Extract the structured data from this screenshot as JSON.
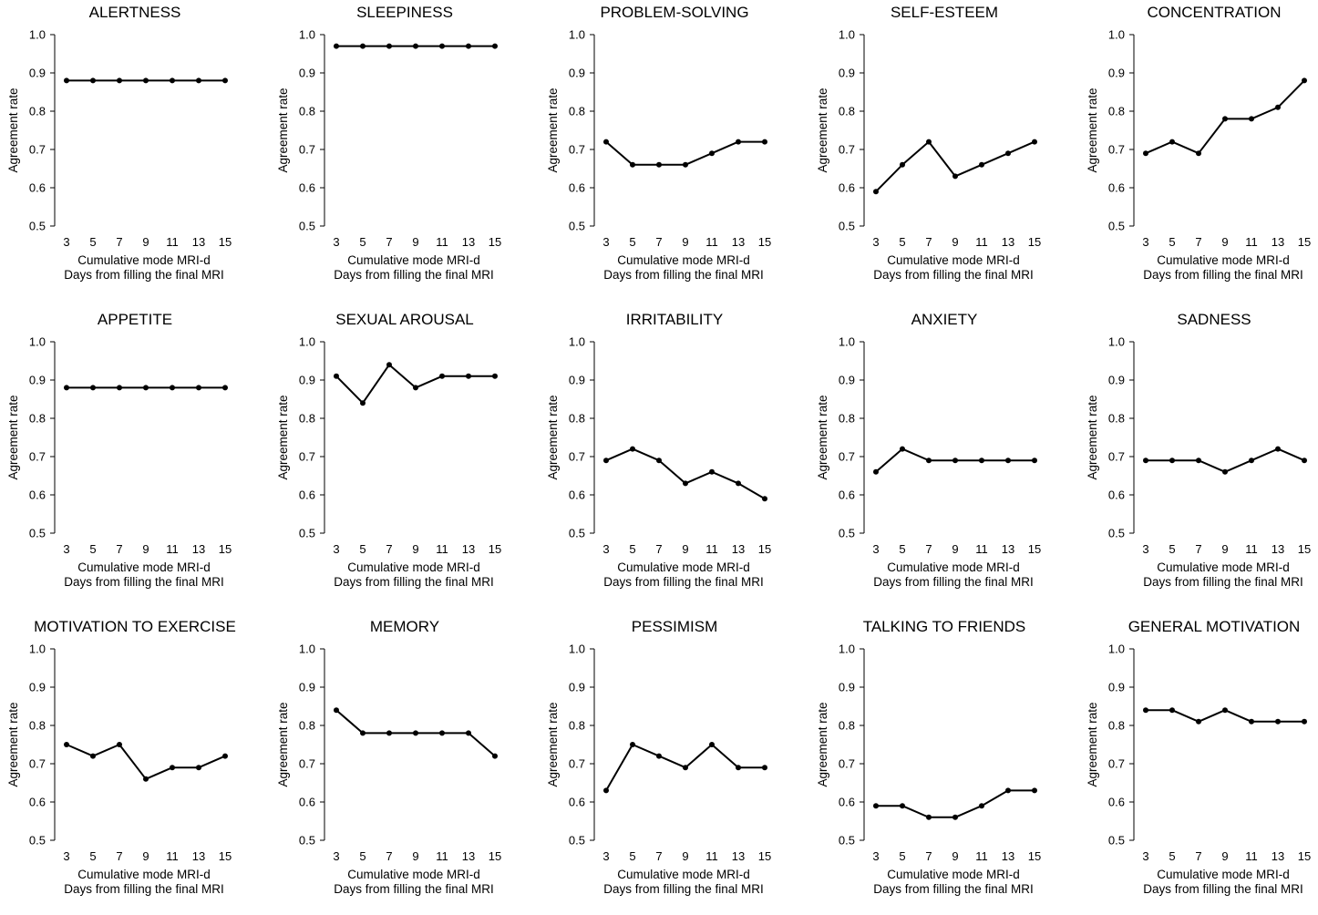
{
  "figure": {
    "background": "#ffffff",
    "line_color": "#000000"
  },
  "chart_data": [
    {
      "type": "line",
      "title": "ALERTNESS",
      "ylabel": "Agreement rate",
      "xlabel": "Cumulative mode MRI-d",
      "xlabel2": "Days from filling the final MRI",
      "x": [
        3,
        5,
        7,
        9,
        11,
        13,
        15
      ],
      "values": [
        0.88,
        0.88,
        0.88,
        0.88,
        0.88,
        0.88,
        0.88
      ],
      "ylim": [
        0.5,
        1.0
      ],
      "yticks": [
        "0.5",
        "0.6",
        "0.7",
        "0.8",
        "0.9",
        "1.0"
      ],
      "xticks": [
        "3",
        "5",
        "7",
        "9",
        "11",
        "13",
        "15"
      ]
    },
    {
      "type": "line",
      "title": "SLEEPINESS",
      "ylabel": "Agreement rate",
      "xlabel": "Cumulative mode MRI-d",
      "xlabel2": "Days from filling the final MRI",
      "x": [
        3,
        5,
        7,
        9,
        11,
        13,
        15
      ],
      "values": [
        0.97,
        0.97,
        0.97,
        0.97,
        0.97,
        0.97,
        0.97
      ],
      "ylim": [
        0.5,
        1.0
      ],
      "yticks": [
        "0.5",
        "0.6",
        "0.7",
        "0.8",
        "0.9",
        "1.0"
      ],
      "xticks": [
        "3",
        "5",
        "7",
        "9",
        "11",
        "13",
        "15"
      ]
    },
    {
      "type": "line",
      "title": "PROBLEM-SOLVING",
      "ylabel": "Agreement rate",
      "xlabel": "Cumulative mode MRI-d",
      "xlabel2": "Days from filling the final MRI",
      "x": [
        3,
        5,
        7,
        9,
        11,
        13,
        15
      ],
      "values": [
        0.72,
        0.66,
        0.66,
        0.66,
        0.69,
        0.72,
        0.72
      ],
      "ylim": [
        0.5,
        1.0
      ],
      "yticks": [
        "0.5",
        "0.6",
        "0.7",
        "0.8",
        "0.9",
        "1.0"
      ],
      "xticks": [
        "3",
        "5",
        "7",
        "9",
        "11",
        "13",
        "15"
      ]
    },
    {
      "type": "line",
      "title": "SELF-ESTEEM",
      "ylabel": "Agreement rate",
      "xlabel": "Cumulative mode MRI-d",
      "xlabel2": "Days from filling the final MRI",
      "x": [
        3,
        5,
        7,
        9,
        11,
        13,
        15
      ],
      "values": [
        0.59,
        0.66,
        0.72,
        0.63,
        0.66,
        0.69,
        0.72
      ],
      "ylim": [
        0.5,
        1.0
      ],
      "yticks": [
        "0.5",
        "0.6",
        "0.7",
        "0.8",
        "0.9",
        "1.0"
      ],
      "xticks": [
        "3",
        "5",
        "7",
        "9",
        "11",
        "13",
        "15"
      ]
    },
    {
      "type": "line",
      "title": "CONCENTRATION",
      "ylabel": "Agreement rate",
      "xlabel": "Cumulative mode MRI-d",
      "xlabel2": "Days from filling the final MRI",
      "x": [
        3,
        5,
        7,
        9,
        11,
        13,
        15
      ],
      "values": [
        0.69,
        0.72,
        0.69,
        0.78,
        0.78,
        0.81,
        0.88
      ],
      "ylim": [
        0.5,
        1.0
      ],
      "yticks": [
        "0.5",
        "0.6",
        "0.7",
        "0.8",
        "0.9",
        "1.0"
      ],
      "xticks": [
        "3",
        "5",
        "7",
        "9",
        "11",
        "13",
        "15"
      ]
    },
    {
      "type": "line",
      "title": "APPETITE",
      "ylabel": "Agreement rate",
      "xlabel": "Cumulative mode MRI-d",
      "xlabel2": "Days from filling the final MRI",
      "x": [
        3,
        5,
        7,
        9,
        11,
        13,
        15
      ],
      "values": [
        0.88,
        0.88,
        0.88,
        0.88,
        0.88,
        0.88,
        0.88
      ],
      "ylim": [
        0.5,
        1.0
      ],
      "yticks": [
        "0.5",
        "0.6",
        "0.7",
        "0.8",
        "0.9",
        "1.0"
      ],
      "xticks": [
        "3",
        "5",
        "7",
        "9",
        "11",
        "13",
        "15"
      ]
    },
    {
      "type": "line",
      "title": "SEXUAL AROUSAL",
      "ylabel": "Agreement rate",
      "xlabel": "Cumulative mode MRI-d",
      "xlabel2": "Days from filling the final MRI",
      "x": [
        3,
        5,
        7,
        9,
        11,
        13,
        15
      ],
      "values": [
        0.91,
        0.84,
        0.94,
        0.88,
        0.91,
        0.91,
        0.91
      ],
      "ylim": [
        0.5,
        1.0
      ],
      "yticks": [
        "0.5",
        "0.6",
        "0.7",
        "0.8",
        "0.9",
        "1.0"
      ],
      "xticks": [
        "3",
        "5",
        "7",
        "9",
        "11",
        "13",
        "15"
      ]
    },
    {
      "type": "line",
      "title": "IRRITABILITY",
      "ylabel": "Agreement rate",
      "xlabel": "Cumulative mode MRI-d",
      "xlabel2": "Days from filling the final MRI",
      "x": [
        3,
        5,
        7,
        9,
        11,
        13,
        15
      ],
      "values": [
        0.69,
        0.72,
        0.69,
        0.63,
        0.66,
        0.63,
        0.59
      ],
      "ylim": [
        0.5,
        1.0
      ],
      "yticks": [
        "0.5",
        "0.6",
        "0.7",
        "0.8",
        "0.9",
        "1.0"
      ],
      "xticks": [
        "3",
        "5",
        "7",
        "9",
        "11",
        "13",
        "15"
      ]
    },
    {
      "type": "line",
      "title": "ANXIETY",
      "ylabel": "Agreement rate",
      "xlabel": "Cumulative mode MRI-d",
      "xlabel2": "Days from filling the final MRI",
      "x": [
        3,
        5,
        7,
        9,
        11,
        13,
        15
      ],
      "values": [
        0.66,
        0.72,
        0.69,
        0.69,
        0.69,
        0.69,
        0.69
      ],
      "ylim": [
        0.5,
        1.0
      ],
      "yticks": [
        "0.5",
        "0.6",
        "0.7",
        "0.8",
        "0.9",
        "1.0"
      ],
      "xticks": [
        "3",
        "5",
        "7",
        "9",
        "11",
        "13",
        "15"
      ]
    },
    {
      "type": "line",
      "title": "SADNESS",
      "ylabel": "Agreement rate",
      "xlabel": "Cumulative mode MRI-d",
      "xlabel2": "Days from filling the final MRI",
      "x": [
        3,
        5,
        7,
        9,
        11,
        13,
        15
      ],
      "values": [
        0.69,
        0.69,
        0.69,
        0.66,
        0.69,
        0.72,
        0.69
      ],
      "ylim": [
        0.5,
        1.0
      ],
      "yticks": [
        "0.5",
        "0.6",
        "0.7",
        "0.8",
        "0.9",
        "1.0"
      ],
      "xticks": [
        "3",
        "5",
        "7",
        "9",
        "11",
        "13",
        "15"
      ]
    },
    {
      "type": "line",
      "title": "MOTIVATION TO EXERCISE",
      "ylabel": "Agreement rate",
      "xlabel": "Cumulative mode MRI-d",
      "xlabel2": "Days from filling the final MRI",
      "x": [
        3,
        5,
        7,
        9,
        11,
        13,
        15
      ],
      "values": [
        0.75,
        0.72,
        0.75,
        0.66,
        0.69,
        0.69,
        0.72
      ],
      "ylim": [
        0.5,
        1.0
      ],
      "yticks": [
        "0.5",
        "0.6",
        "0.7",
        "0.8",
        "0.9",
        "1.0"
      ],
      "xticks": [
        "3",
        "5",
        "7",
        "9",
        "11",
        "13",
        "15"
      ]
    },
    {
      "type": "line",
      "title": "MEMORY",
      "ylabel": "Agreement rate",
      "xlabel": "Cumulative mode MRI-d",
      "xlabel2": "Days from filling the final MRI",
      "x": [
        3,
        5,
        7,
        9,
        11,
        13,
        15
      ],
      "values": [
        0.84,
        0.78,
        0.78,
        0.78,
        0.78,
        0.78,
        0.72
      ],
      "ylim": [
        0.5,
        1.0
      ],
      "yticks": [
        "0.5",
        "0.6",
        "0.7",
        "0.8",
        "0.9",
        "1.0"
      ],
      "xticks": [
        "3",
        "5",
        "7",
        "9",
        "11",
        "13",
        "15"
      ]
    },
    {
      "type": "line",
      "title": "PESSIMISM",
      "ylabel": "Agreement rate",
      "xlabel": "Cumulative mode MRI-d",
      "xlabel2": "Days from filling the final MRI",
      "x": [
        3,
        5,
        7,
        9,
        11,
        13,
        15
      ],
      "values": [
        0.63,
        0.75,
        0.72,
        0.69,
        0.75,
        0.69,
        0.69
      ],
      "ylim": [
        0.5,
        1.0
      ],
      "yticks": [
        "0.5",
        "0.6",
        "0.7",
        "0.8",
        "0.9",
        "1.0"
      ],
      "xticks": [
        "3",
        "5",
        "7",
        "9",
        "11",
        "13",
        "15"
      ]
    },
    {
      "type": "line",
      "title": "TALKING TO FRIENDS",
      "ylabel": "Agreement rate",
      "xlabel": "Cumulative mode MRI-d",
      "xlabel2": "Days from filling the final MRI",
      "x": [
        3,
        5,
        7,
        9,
        11,
        13,
        15
      ],
      "values": [
        0.59,
        0.59,
        0.56,
        0.56,
        0.59,
        0.63,
        0.63
      ],
      "ylim": [
        0.5,
        1.0
      ],
      "yticks": [
        "0.5",
        "0.6",
        "0.7",
        "0.8",
        "0.9",
        "1.0"
      ],
      "xticks": [
        "3",
        "5",
        "7",
        "9",
        "11",
        "13",
        "15"
      ]
    },
    {
      "type": "line",
      "title": "GENERAL MOTIVATION",
      "ylabel": "Agreement rate",
      "xlabel": "Cumulative mode MRI-d",
      "xlabel2": "Days from filling the final MRI",
      "x": [
        3,
        5,
        7,
        9,
        11,
        13,
        15
      ],
      "values": [
        0.84,
        0.84,
        0.81,
        0.84,
        0.81,
        0.81,
        0.81
      ],
      "ylim": [
        0.5,
        1.0
      ],
      "yticks": [
        "0.5",
        "0.6",
        "0.7",
        "0.8",
        "0.9",
        "1.0"
      ],
      "xticks": [
        "3",
        "5",
        "7",
        "9",
        "11",
        "13",
        "15"
      ]
    }
  ]
}
